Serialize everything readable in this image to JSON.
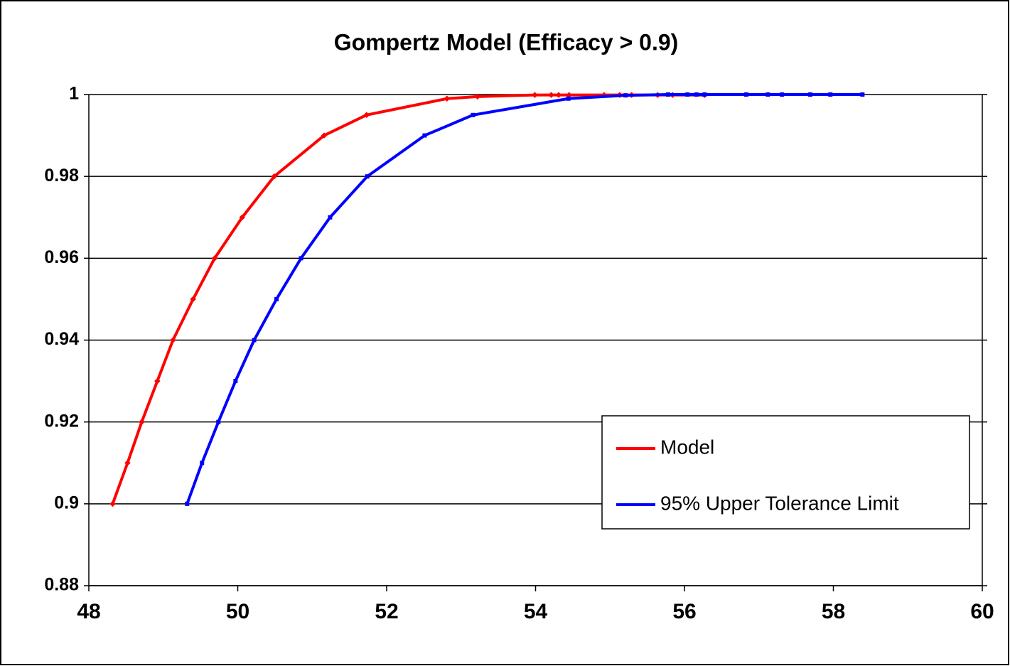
{
  "chart_data": {
    "type": "line",
    "title": "Gompertz Model (Efficacy > 0.9)",
    "series": [
      {
        "name": "Model",
        "color": "#ff0000",
        "x": [
          48.32,
          48.52,
          48.71,
          48.92,
          49.13,
          49.4,
          49.69,
          50.06,
          50.49,
          51.16,
          51.73,
          52.81,
          53.22,
          53.99,
          54.21,
          54.31,
          54.45,
          54.92,
          55.13,
          55.29,
          55.64,
          55.84,
          56.27
        ],
        "values": [
          0.9,
          0.91,
          0.92,
          0.93,
          0.94,
          0.95,
          0.96,
          0.97,
          0.98,
          0.99,
          0.995,
          0.999,
          0.9995,
          0.9999,
          0.9999,
          0.9999,
          0.9999,
          0.9999,
          0.9999,
          0.9999,
          0.9999,
          0.9999,
          0.9999
        ]
      },
      {
        "name": "95% Upper Tolerance Limit",
        "color": "#0000ff",
        "x": [
          49.32,
          49.52,
          49.74,
          49.97,
          50.22,
          50.52,
          50.85,
          51.24,
          51.74,
          52.51,
          53.16,
          54.44,
          55.21,
          55.78,
          56.04,
          56.16,
          56.27,
          56.83,
          57.12,
          57.31,
          57.69,
          57.96,
          58.39
        ],
        "values": [
          0.9,
          0.91,
          0.92,
          0.93,
          0.94,
          0.95,
          0.96,
          0.97,
          0.98,
          0.99,
          0.995,
          0.999,
          0.9998,
          1,
          1,
          1,
          1,
          1,
          1,
          1,
          1,
          1,
          1
        ]
      }
    ],
    "xlim": [
      48,
      60
    ],
    "xticks": [
      48,
      50,
      52,
      54,
      56,
      58,
      60
    ],
    "ylim": [
      0.88,
      1
    ],
    "yticks": [
      0.88,
      0.9,
      0.92,
      0.94,
      0.96,
      0.98,
      1
    ],
    "grid": true,
    "legend": "lower right"
  }
}
